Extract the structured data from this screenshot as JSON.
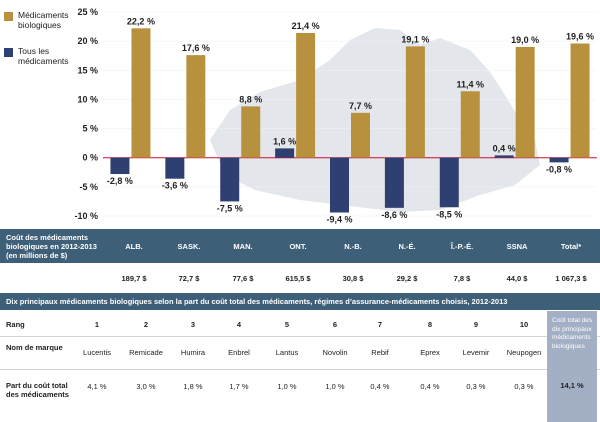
{
  "chart_data": {
    "type": "bar",
    "categories": [
      "ALB.",
      "SASK.",
      "MAN.",
      "ONT.",
      "N.-B.",
      "N.-É.",
      "Î.-P.-É.",
      "SSNA",
      "Total*"
    ],
    "series": [
      {
        "name": "Médicaments biologiques",
        "values": [
          22.2,
          17.6,
          8.8,
          21.4,
          7.7,
          19.1,
          11.4,
          19.0,
          19.6
        ],
        "labels": [
          "22,2 %",
          "17,6 %",
          "8,8 %",
          "21,4 %",
          "7,7 %",
          "19,1 %",
          "11,4 %",
          "19,0 %",
          "19,6 %"
        ]
      },
      {
        "name": "Tous les médicaments",
        "values": [
          -2.8,
          -3.6,
          -7.5,
          1.6,
          -9.4,
          -8.6,
          -8.5,
          0.4,
          -0.8
        ],
        "labels": [
          "-2,8 %",
          "-3,6 %",
          "-7,5 %",
          "1,6 %",
          "-9,4 %",
          "-8,6 %",
          "-8,5 %",
          "0,4 %",
          "-0,8 %"
        ]
      }
    ],
    "ylim": [
      -10,
      25
    ],
    "yticks": [
      25,
      20,
      15,
      10,
      5,
      0,
      -5,
      -10
    ],
    "ytick_labels": [
      "25 %",
      "20 %",
      "15 %",
      "10 %",
      "5 %",
      "0 %",
      "-5 %",
      "-10 %"
    ],
    "colors": {
      "bio": "#b8913f",
      "all": "#2e3f72",
      "zero": "#c8102e",
      "map": "#e3e6ea"
    },
    "legend": "left"
  },
  "legend": {
    "bio": "Médicaments biologiques",
    "all": "Tous les médicaments"
  },
  "table1": {
    "title": "Coût des médicaments biologiques en 2012-2013 (en millions de $)",
    "headers": [
      "ALB.",
      "SASK.",
      "MAN.",
      "ONT.",
      "N.-B.",
      "N.-É.",
      "Î.-P.-É.",
      "SSNA",
      "Total*"
    ],
    "values": [
      "189,7 $",
      "72,7 $",
      "77,6 $",
      "615,5 $",
      "30,8 $",
      "29,2 $",
      "7,8 $",
      "44,0 $",
      "1 067,3 $"
    ]
  },
  "table2": {
    "title": "Dix principaux médicaments biologiques selon la part du coût total des médicaments, régimes d’assurance-médicaments choisis, 2012-2013",
    "rank_label": "Rang",
    "brand_label": "Nom de marque",
    "share_label": "Part du coût total des médicaments",
    "ranks": [
      "1",
      "2",
      "3",
      "4",
      "5",
      "6",
      "7",
      "8",
      "9",
      "10"
    ],
    "brands": [
      "Lucentis",
      "Remicade",
      "Humira",
      "Enbrel",
      "Lantus",
      "Novolin",
      "Rebif",
      "Eprex",
      "Levemir",
      "Neupogen"
    ],
    "shares": [
      "4,1 %",
      "3,0 %",
      "1,8 %",
      "1,7 %",
      "1,0 %",
      "1,0 %",
      "0,4 %",
      "0,4 %",
      "0,3 %",
      "0,3 %"
    ],
    "total_box_label": "Coût total des dix principaux médicaments biologiques",
    "total_box_value": "14,1 %"
  }
}
